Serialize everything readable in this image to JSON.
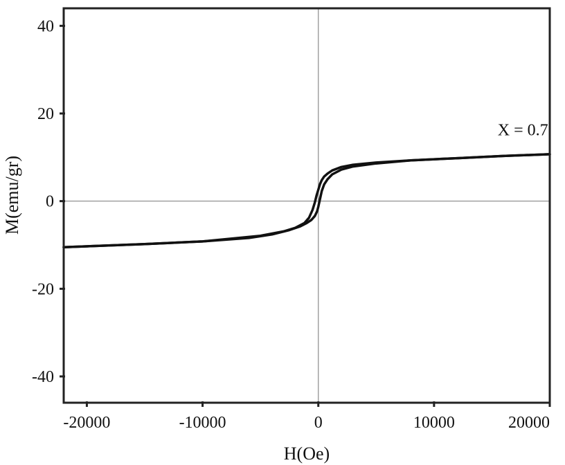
{
  "chart_data": {
    "type": "line",
    "title": "",
    "xlabel": "H(Oe)",
    "ylabel": "M(emu/gr)",
    "xlim": [
      -22000,
      20000
    ],
    "ylim": [
      -46,
      44
    ],
    "xticks": [
      -20000,
      -10000,
      0,
      10000,
      20000
    ],
    "xtick_labels": [
      "-20000",
      "-10000",
      "0",
      "10000",
      "20000"
    ],
    "yticks": [
      40,
      20,
      0,
      -20,
      -40
    ],
    "ytick_labels": [
      "40",
      "20",
      "0",
      "-20",
      "-40"
    ],
    "zero_lines": true,
    "grid": false,
    "legend": "none",
    "annotation": {
      "text": "X = 0.7",
      "x": 15500,
      "y": 15
    },
    "colors": {
      "curve": "#111111",
      "axes": "#222222",
      "zero_line": "#a0a0a0"
    },
    "series": [
      {
        "x": [
          -22000,
          -15000,
          -10000,
          -6000,
          -4000,
          -2500,
          -1600,
          -1000,
          -600,
          -300,
          -100,
          0,
          150,
          300,
          500,
          800,
          1200,
          2000,
          3000,
          5000,
          8000,
          12000,
          16000,
          20000
        ],
        "y": [
          -10.5,
          -9.8,
          -9.2,
          -8.4,
          -7.6,
          -6.6,
          -5.8,
          -5.0,
          -4.3,
          -3.4,
          -2.3,
          -1.3,
          0.5,
          2.3,
          3.8,
          5.0,
          6.1,
          7.2,
          7.9,
          8.6,
          9.3,
          9.8,
          10.3,
          10.7
        ]
      },
      {
        "x": [
          20000,
          16000,
          12000,
          8000,
          5000,
          3000,
          2000,
          1200,
          800,
          500,
          300,
          150,
          0,
          -150,
          -300,
          -500,
          -800,
          -1200,
          -2000,
          -3000,
          -5000,
          -10000,
          -15000,
          -22000
        ],
        "y": [
          10.7,
          10.3,
          9.8,
          9.3,
          8.8,
          8.3,
          7.8,
          7.0,
          6.3,
          5.6,
          4.8,
          3.9,
          2.6,
          1.3,
          -0.3,
          -2.0,
          -3.8,
          -5.0,
          -6.1,
          -6.9,
          -7.9,
          -9.2,
          -9.8,
          -10.5
        ]
      }
    ]
  }
}
